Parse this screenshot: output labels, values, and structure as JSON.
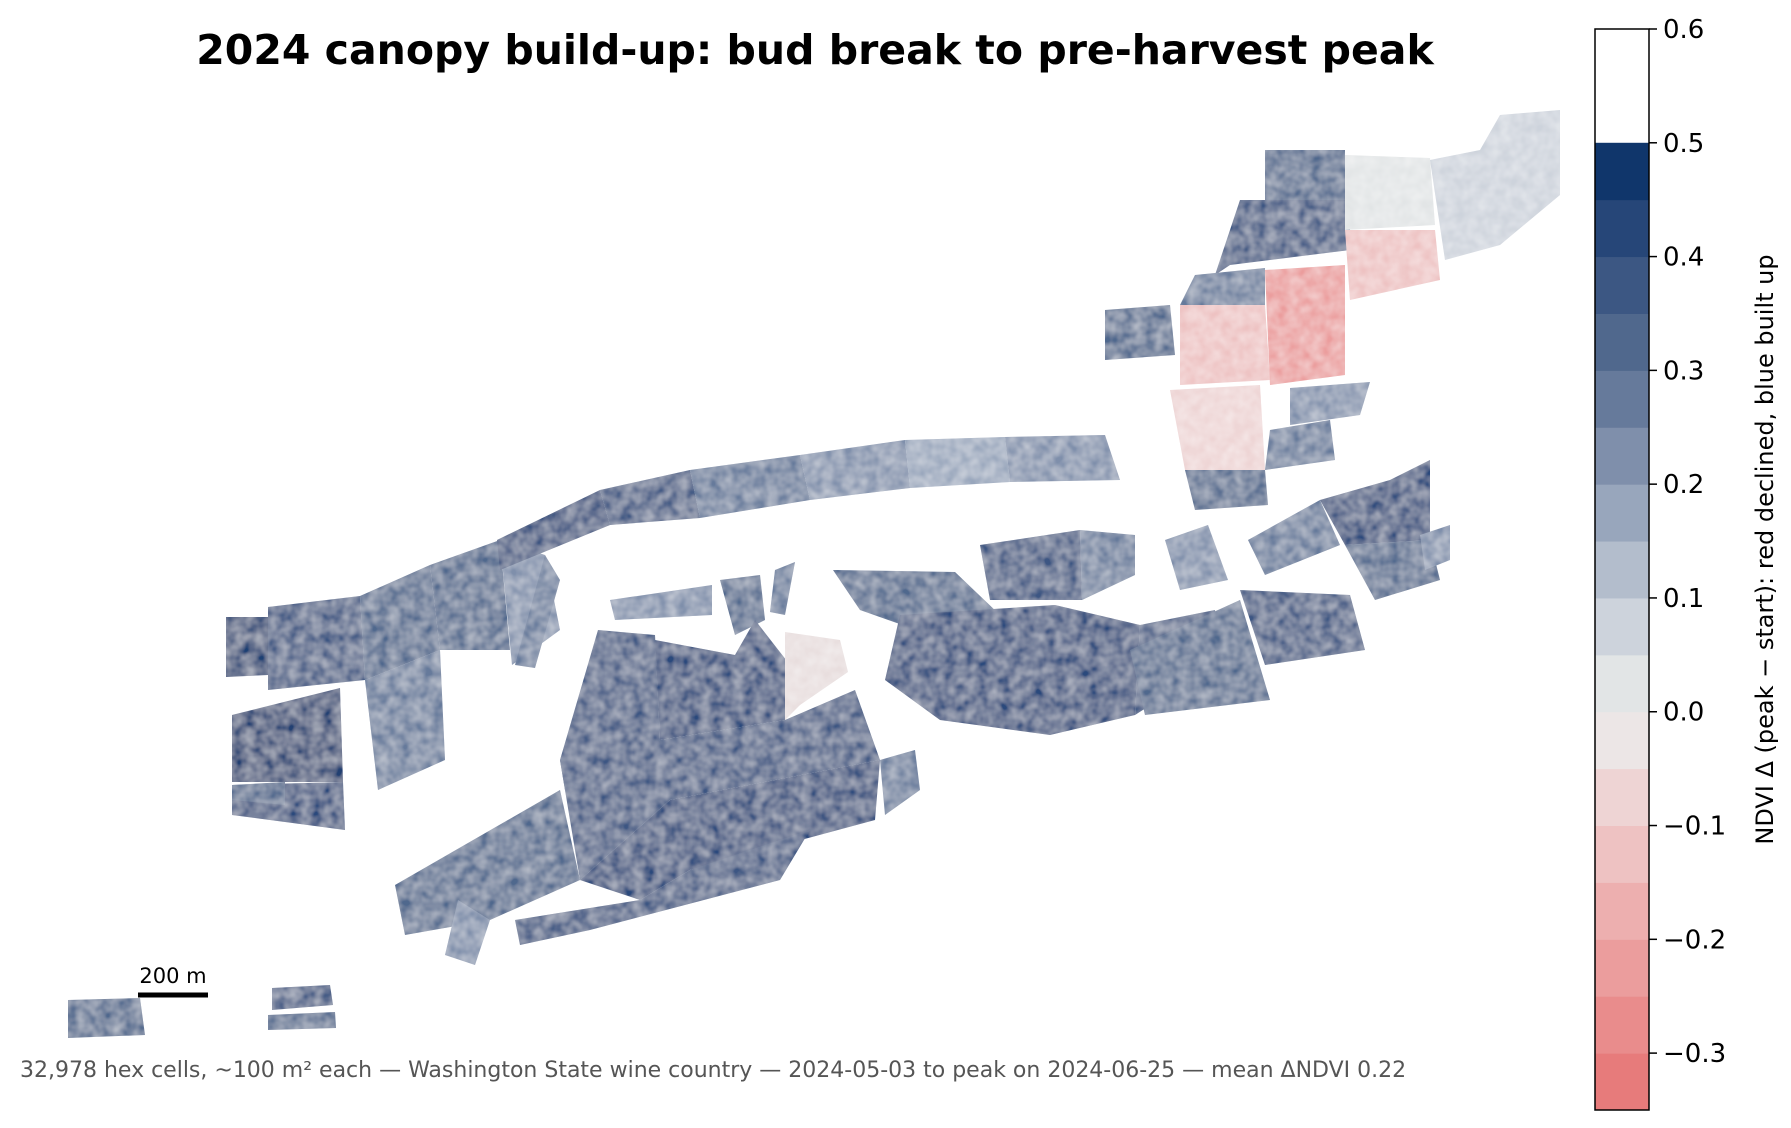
{
  "title": "2024 canopy build-up: bud break to pre-harvest peak",
  "caption": "32,978 hex cells, ~100 m² each — Washington State wine country — 2024-05-03 to peak on 2024-06-25 — mean ΔNDVI 0.22",
  "scale_bar": {
    "label": "200 m"
  },
  "colorbar": {
    "label": "NDVI Δ (peak − start): red declined, blue built up",
    "min": -0.35,
    "max": 0.6,
    "step": 0.05,
    "ticks": [
      "0.6",
      "0.5",
      "0.4",
      "0.3",
      "0.2",
      "0.1",
      "0.0",
      "−0.1",
      "−0.2",
      "−0.3"
    ],
    "tick_values": [
      0.6,
      0.5,
      0.4,
      0.3,
      0.2,
      0.1,
      0.0,
      -0.1,
      -0.2,
      -0.3
    ],
    "colors": [
      "#e77b7b",
      "#e98c8c",
      "#eb9d9d",
      "#edafaf",
      "#eec2c2",
      "#eed4d4",
      "#ece6e6",
      "#e2e5e6",
      "#cdd3dc",
      "#b3bdcc",
      "#98a6bc",
      "#7f8fab",
      "#667a9b",
      "#50688d",
      "#3c5783",
      "#264678",
      "#10366b"
    ]
  },
  "map": {
    "color_bands": {
      "deep_blue": "#264678",
      "blue": "#3c5783",
      "mid_blue": "#50688d",
      "light_blue": "#7f8fab",
      "pale_blue": "#b3bdcc",
      "neutral": "#e2e5e6",
      "pale_red": "#eec2c2",
      "red": "#eb9d9d"
    }
  }
}
